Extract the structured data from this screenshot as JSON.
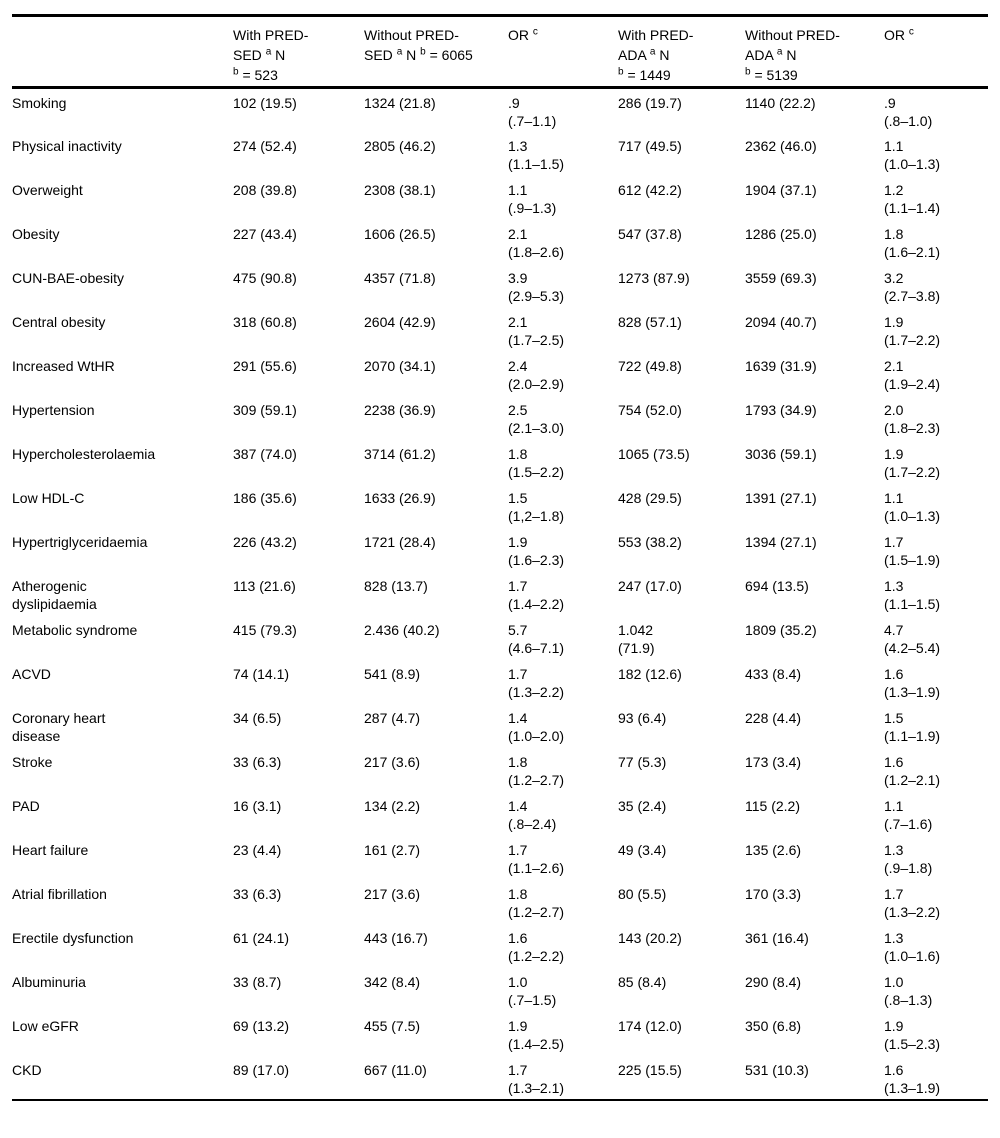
{
  "table": {
    "headers": [
      {
        "lines": []
      },
      {
        "lines": [
          {
            "pre": "With PRED-"
          },
          {
            "pre": "SED ",
            "sup": "a",
            "mid": " N"
          },
          {
            "sup2": "b",
            "post": " = 523"
          }
        ]
      },
      {
        "lines": [
          {
            "pre": "Without PRED-"
          },
          {
            "pre": "SED ",
            "sup": "a",
            "mid": " N ",
            "sup2": "b",
            "post": " = 6065"
          }
        ]
      },
      {
        "lines": [
          {
            "pre": "OR ",
            "sup": "c"
          }
        ]
      },
      {
        "lines": [
          {
            "pre": "With PRED-"
          },
          {
            "pre": "ADA ",
            "sup": "a",
            "mid": " N"
          },
          {
            "sup2": "b",
            "post": " = 1449"
          }
        ]
      },
      {
        "lines": [
          {
            "pre": "Without PRED-"
          },
          {
            "pre": "ADA ",
            "sup": "a",
            "mid": " N"
          },
          {
            "sup2": "b",
            "post": " = 5139"
          }
        ]
      },
      {
        "lines": [
          {
            "pre": "OR ",
            "sup": "c"
          }
        ]
      }
    ],
    "rows": [
      {
        "label": "Smoking",
        "cells": [
          "102 (19.5)",
          "1324 (21.8)",
          ".9\n(.7–1.1)",
          "286 (19.7)",
          "1140 (22.2)",
          ".9\n(.8–1.0)"
        ]
      },
      {
        "label": "Physical inactivity",
        "cells": [
          "274 (52.4)",
          "2805 (46.2)",
          "1.3\n(1.1–1.5)",
          "717 (49.5)",
          "2362 (46.0)",
          "1.1\n(1.0–1.3)"
        ]
      },
      {
        "label": "Overweight",
        "cells": [
          "208 (39.8)",
          "2308 (38.1)",
          "1.1\n(.9–1.3)",
          "612 (42.2)",
          "1904 (37.1)",
          "1.2\n(1.1–1.4)"
        ]
      },
      {
        "label": "Obesity",
        "cells": [
          "227 (43.4)",
          "1606 (26.5)",
          "2.1\n(1.8–2.6)",
          "547 (37.8)",
          "1286 (25.0)",
          "1.8\n(1.6–2.1)"
        ]
      },
      {
        "label": "CUN-BAE-obesity",
        "cells": [
          "475 (90.8)",
          "4357 (71.8)",
          "3.9\n(2.9–5.3)",
          "1273 (87.9)",
          "3559 (69.3)",
          "3.2\n(2.7–3.8)"
        ]
      },
      {
        "label": "Central obesity",
        "cells": [
          "318 (60.8)",
          "2604 (42.9)",
          "2.1\n(1.7–2.5)",
          "828 (57.1)",
          "2094 (40.7)",
          "1.9\n(1.7–2.2)"
        ]
      },
      {
        "label": "Increased WtHR",
        "cells": [
          "291 (55.6)",
          "2070 (34.1)",
          "2.4\n(2.0–2.9)",
          "722 (49.8)",
          "1639 (31.9)",
          "2.1\n(1.9–2.4)"
        ]
      },
      {
        "label": "Hypertension",
        "cells": [
          "309 (59.1)",
          "2238 (36.9)",
          "2.5\n(2.1–3.0)",
          "754 (52.0)",
          "1793 (34.9)",
          "2.0\n(1.8–2.3)"
        ]
      },
      {
        "label": "Hypercholesterolaemia",
        "cells": [
          "387 (74.0)",
          "3714 (61.2)",
          "1.8\n(1.5–2.2)",
          "1065 (73.5)",
          "3036 (59.1)",
          "1.9\n(1.7–2.2)"
        ]
      },
      {
        "label": "Low HDL-C",
        "cells": [
          "186 (35.6)",
          "1633 (26.9)",
          "1.5\n(1,2–1.8)",
          "428 (29.5)",
          "1391 (27.1)",
          "1.1\n(1.0–1.3)"
        ]
      },
      {
        "label": "Hypertriglyceridaemia",
        "cells": [
          "226 (43.2)",
          "1721 (28.4)",
          "1.9\n(1.6–2.3)",
          "553 (38.2)",
          "1394 (27.1)",
          "1.7\n(1.5–1.9)"
        ]
      },
      {
        "label": "Atherogenic\ndyslipidaemia",
        "cells": [
          "113 (21.6)",
          "828 (13.7)",
          "1.7\n(1.4–2.2)",
          "247 (17.0)",
          "694 (13.5)",
          "1.3\n(1.1–1.5)"
        ]
      },
      {
        "label": "Metabolic syndrome",
        "cells": [
          "415 (79.3)",
          "2.436 (40.2)",
          "5.7\n(4.6–7.1)",
          "1.042\n(71.9)",
          "1809 (35.2)",
          "4.7\n(4.2–5.4)"
        ]
      },
      {
        "label": "ACVD",
        "cells": [
          "74 (14.1)",
          "541 (8.9)",
          "1.7\n(1.3–2.2)",
          "182 (12.6)",
          "433 (8.4)",
          "1.6\n(1.3–1.9)"
        ]
      },
      {
        "label": "Coronary heart\ndisease",
        "cells": [
          "34 (6.5)",
          "287 (4.7)",
          "1.4\n(1.0–2.0)",
          "93 (6.4)",
          "228 (4.4)",
          "1.5\n(1.1–1.9)"
        ]
      },
      {
        "label": "Stroke",
        "cells": [
          "33 (6.3)",
          "217 (3.6)",
          "1.8\n(1.2–2.7)",
          "77 (5.3)",
          "173 (3.4)",
          "1.6\n(1.2–2.1)"
        ]
      },
      {
        "label": "PAD",
        "cells": [
          "16 (3.1)",
          "134 (2.2)",
          "1.4\n(.8–2.4)",
          "35 (2.4)",
          "115 (2.2)",
          "1.1\n(.7–1.6)"
        ]
      },
      {
        "label": "Heart failure",
        "cells": [
          "23 (4.4)",
          "161 (2.7)",
          "1.7\n(1.1–2.6)",
          "49 (3.4)",
          "135 (2.6)",
          "1.3\n(.9–1.8)"
        ]
      },
      {
        "label": "Atrial fibrillation",
        "cells": [
          "33 (6.3)",
          "217 (3.6)",
          "1.8\n(1.2–2.7)",
          "80 (5.5)",
          "170 (3.3)",
          "1.7\n(1.3–2.2)"
        ]
      },
      {
        "label": "Erectile dysfunction",
        "cells": [
          "61 (24.1)",
          "443 (16.7)",
          "1.6\n(1.2–2.2)",
          "143 (20.2)",
          "361 (16.4)",
          "1.3\n(1.0–1.6)"
        ]
      },
      {
        "label": "Albuminuria",
        "cells": [
          "33 (8.7)",
          "342 (8.4)",
          "1.0\n(.7–1.5)",
          "85 (8.4)",
          "290 (8.4)",
          "1.0\n(.8–1.3)"
        ]
      },
      {
        "label": "Low eGFR",
        "cells": [
          "69 (13.2)",
          "455 (7.5)",
          "1.9\n(1.4–2.5)",
          "174 (12.0)",
          "350 (6.8)",
          "1.9\n(1.5–2.3)"
        ]
      },
      {
        "label": "CKD",
        "cells": [
          "89 (17.0)",
          "667 (11.0)",
          "1.7\n(1.3–2.1)",
          "225 (15.5)",
          "531 (10.3)",
          "1.6\n(1.3–1.9)"
        ]
      }
    ]
  }
}
